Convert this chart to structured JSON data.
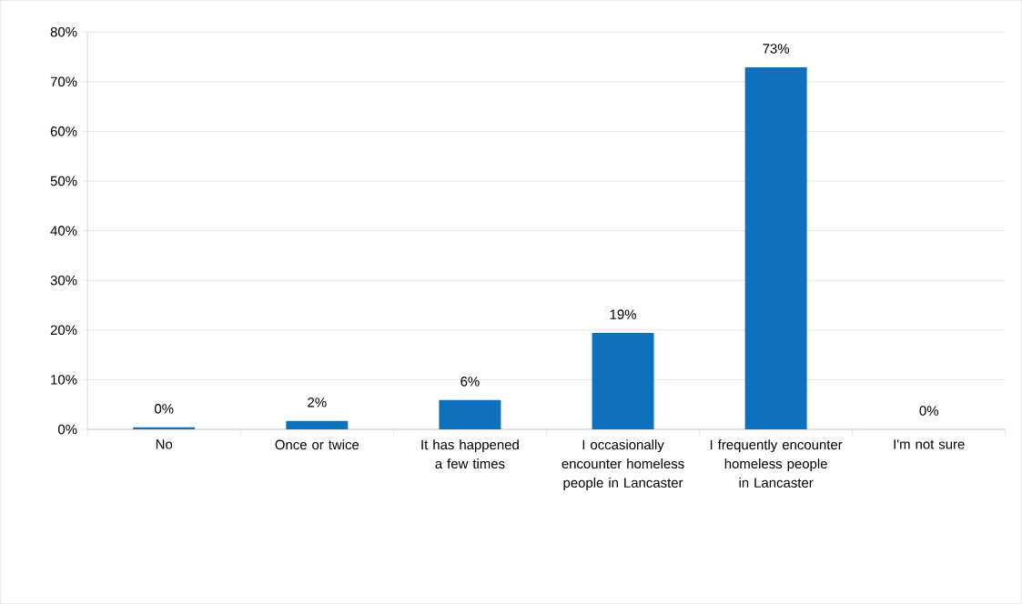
{
  "chart_data": {
    "type": "bar",
    "categories": [
      "No",
      "Once or twice",
      "It has happened a few times",
      "I occasionally encounter homeless people in Lancaster",
      "I frequently encounter homeless people in Lancaster",
      "I'm not sure"
    ],
    "values": [
      0.4,
      1.7,
      5.9,
      19.4,
      72.9,
      0
    ],
    "value_labels": [
      "0%",
      "2%",
      "6%",
      "19%",
      "73%",
      "0%"
    ],
    "color": "#0f70bc",
    "ylim": [
      0,
      80
    ],
    "yticks": [
      {
        "value": 0,
        "label": "0%"
      },
      {
        "value": 10,
        "label": "10%"
      },
      {
        "value": 20,
        "label": "20%"
      },
      {
        "value": 30,
        "label": "30%"
      },
      {
        "value": 40,
        "label": "40%"
      },
      {
        "value": 50,
        "label": "50%"
      },
      {
        "value": 60,
        "label": "60%"
      },
      {
        "value": 70,
        "label": "70%"
      },
      {
        "value": 80,
        "label": "80%"
      }
    ],
    "grid": "y"
  }
}
